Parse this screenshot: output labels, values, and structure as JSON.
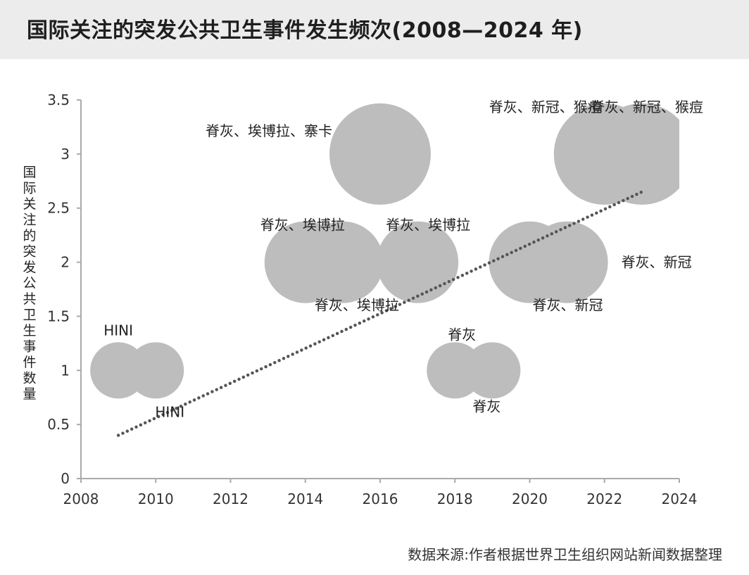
{
  "title": "国际关注的突发公共卫生事件发生频次(2008—2024 年)",
  "source": "数据来源:作者根据世界卫生组织网站新闻数据整理",
  "chart_data": {
    "type": "scatter",
    "ylabel": "国际关注的突发公共卫生事件数量",
    "xlabel": "",
    "xlim": [
      2008,
      2024
    ],
    "ylim": [
      0,
      3.5
    ],
    "x_ticks": [
      "2008",
      "2010",
      "2012",
      "2014",
      "2016",
      "2018",
      "2020",
      "2022",
      "2024"
    ],
    "y_ticks": [
      "0",
      "0.5",
      "1",
      "1.5",
      "2",
      "2.5",
      "3",
      "3.5"
    ],
    "bubble_color": "#bdbdbd",
    "points": [
      {
        "x": 2009,
        "y": 1,
        "label": "HINI"
      },
      {
        "x": 2010,
        "y": 1,
        "label": "HINI"
      },
      {
        "x": 2014,
        "y": 2,
        "label": "脊灰、埃博拉"
      },
      {
        "x": 2015,
        "y": 2,
        "label": "脊灰、埃博拉"
      },
      {
        "x": 2016,
        "y": 3,
        "label": "脊灰、埃博拉、寨卡"
      },
      {
        "x": 2017,
        "y": 2,
        "label": "脊灰、埃博拉"
      },
      {
        "x": 2018,
        "y": 1,
        "label": "脊灰"
      },
      {
        "x": 2019,
        "y": 1,
        "label": "脊灰"
      },
      {
        "x": 2020,
        "y": 2,
        "label": "脊灰、新冠"
      },
      {
        "x": 2021,
        "y": 2,
        "label": "脊灰、新冠"
      },
      {
        "x": 2022,
        "y": 3,
        "label": "脊灰、新冠、猴痘"
      },
      {
        "x": 2023,
        "y": 3,
        "label": "脊灰、新冠、猴痘"
      }
    ],
    "trendline": {
      "style": "dotted",
      "x": [
        2009,
        2023
      ],
      "y": [
        0.4,
        2.65
      ]
    }
  }
}
